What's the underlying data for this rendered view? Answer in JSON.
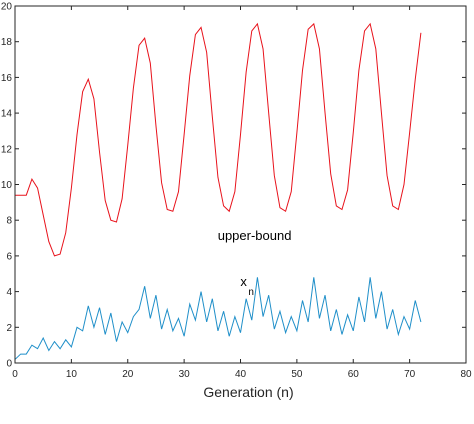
{
  "chart_data": {
    "type": "line",
    "title": "",
    "xlabel": "Generation (n)",
    "ylabel": "",
    "xlim": [
      0,
      80
    ],
    "ylim": [
      0,
      20
    ],
    "xticks": [
      "0",
      "10",
      "20",
      "30",
      "40",
      "50",
      "60",
      "70",
      "80"
    ],
    "yticks": [
      "0",
      "2",
      "4",
      "6",
      "8",
      "10",
      "12",
      "14",
      "16",
      "18",
      "20"
    ],
    "grid": false,
    "legend": "none",
    "annotations": [
      {
        "text": "upper-bound",
        "x": 42.5,
        "y": 6.9
      },
      {
        "text": "x",
        "sub": "n",
        "x": 40.5,
        "y": 4.3
      }
    ],
    "series": [
      {
        "color": "#e8121b",
        "x": [
          0,
          1,
          2,
          3,
          4,
          5,
          6,
          7,
          8,
          9,
          10,
          11,
          12,
          13,
          14,
          15,
          16,
          17,
          18,
          19,
          20,
          21,
          22,
          23,
          24,
          25,
          26,
          27,
          28,
          29,
          30,
          31,
          32,
          33,
          34,
          35,
          36,
          37,
          38,
          39,
          40,
          41,
          42,
          43,
          44,
          45,
          46,
          47,
          48,
          49,
          50,
          51,
          52,
          53,
          54,
          55,
          56,
          57,
          58,
          59,
          60,
          61,
          62,
          63,
          64,
          65,
          66,
          67,
          68,
          69,
          70,
          71,
          72
        ],
        "values": [
          9.4,
          9.4,
          9.4,
          10.3,
          9.8,
          8.3,
          6.8,
          6.0,
          6.1,
          7.3,
          9.8,
          12.8,
          15.2,
          15.9,
          14.8,
          11.8,
          9.1,
          8.0,
          7.9,
          9.2,
          12.2,
          15.4,
          17.8,
          18.2,
          16.8,
          13.3,
          10.1,
          8.6,
          8.5,
          9.6,
          12.8,
          16.1,
          18.4,
          18.8,
          17.4,
          13.8,
          10.4,
          8.8,
          8.5,
          9.6,
          12.8,
          16.3,
          18.6,
          19.0,
          17.6,
          14.0,
          10.5,
          8.7,
          8.5,
          9.6,
          12.9,
          16.4,
          18.7,
          19.0,
          17.6,
          14.0,
          10.6,
          8.8,
          8.6,
          9.7,
          12.9,
          16.4,
          18.6,
          19.0,
          17.6,
          14.0,
          10.5,
          8.8,
          8.6,
          10.0,
          12.9,
          15.9,
          18.5
        ]
      },
      {
        "color": "#1f8fc9",
        "x": [
          0,
          1,
          2,
          3,
          4,
          5,
          6,
          7,
          8,
          9,
          10,
          11,
          12,
          13,
          14,
          15,
          16,
          17,
          18,
          19,
          20,
          21,
          22,
          23,
          24,
          25,
          26,
          27,
          28,
          29,
          30,
          31,
          32,
          33,
          34,
          35,
          36,
          37,
          38,
          39,
          40,
          41,
          42,
          43,
          44,
          45,
          46,
          47,
          48,
          49,
          50,
          51,
          52,
          53,
          54,
          55,
          56,
          57,
          58,
          59,
          60,
          61,
          62,
          63,
          64,
          65,
          66,
          67,
          68,
          69,
          70,
          71,
          72
        ],
        "values": [
          0.2,
          0.5,
          0.5,
          1.0,
          0.8,
          1.4,
          0.7,
          1.2,
          0.8,
          1.3,
          0.9,
          2.0,
          1.8,
          3.2,
          2.0,
          3.1,
          1.6,
          2.8,
          1.2,
          2.3,
          1.7,
          2.6,
          3.0,
          4.3,
          2.5,
          3.8,
          1.9,
          3.0,
          1.8,
          2.5,
          1.5,
          3.3,
          2.4,
          4.0,
          2.3,
          3.6,
          1.8,
          2.9,
          1.5,
          2.6,
          1.7,
          3.6,
          2.4,
          4.8,
          2.6,
          3.8,
          1.9,
          2.9,
          1.7,
          2.6,
          1.8,
          3.5,
          2.3,
          4.8,
          2.5,
          3.8,
          1.8,
          3.0,
          1.6,
          2.7,
          1.8,
          3.7,
          2.3,
          4.8,
          2.5,
          4.0,
          1.9,
          3.0,
          1.6,
          2.6,
          1.9,
          3.5,
          2.3
        ]
      }
    ]
  }
}
